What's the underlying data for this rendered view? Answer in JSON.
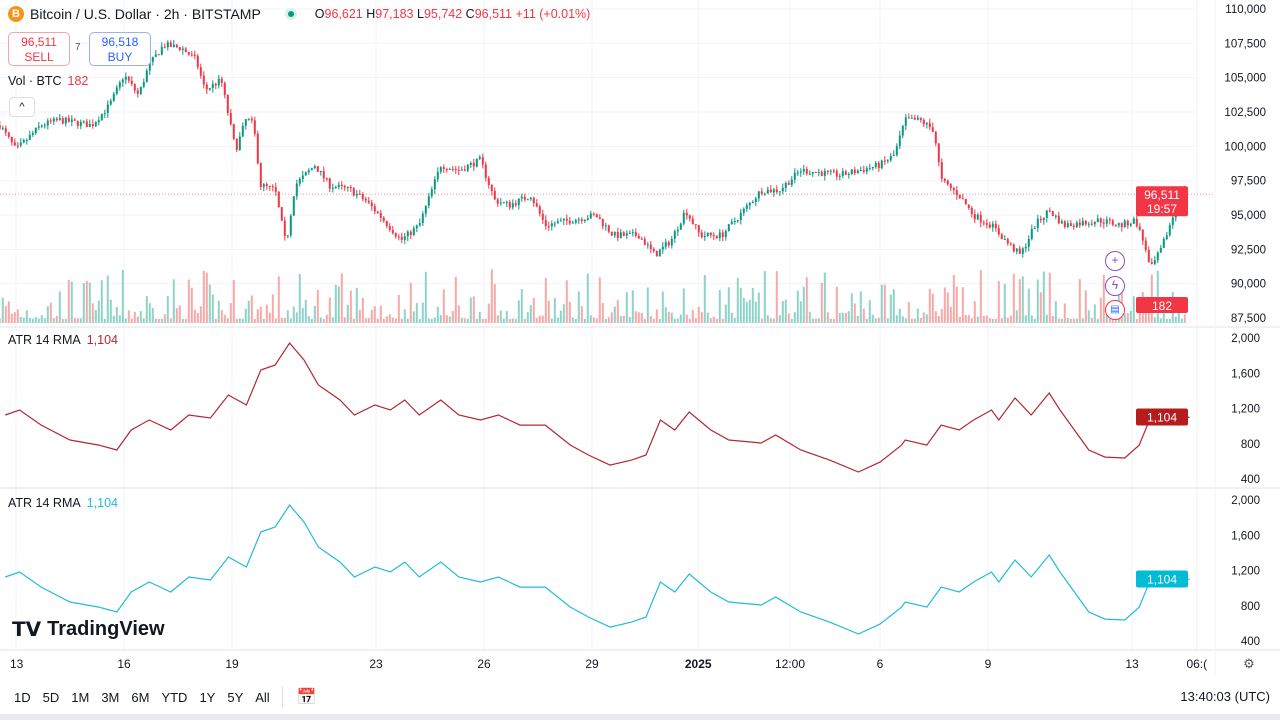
{
  "header": {
    "coin_icon": "B",
    "title": "Bitcoin / U.S. Dollar · 2h · BITSTAMP",
    "ohlc": {
      "o_label": "O",
      "o": "96,621",
      "h_label": "H",
      "h": "97,183",
      "l_label": "L",
      "l": "95,742",
      "c_label": "C",
      "c": "96,511",
      "change": "+11 (+0.01%)"
    }
  },
  "trade": {
    "sell_price": "96,511",
    "sell_label": "SELL",
    "spread": "7",
    "buy_price": "96,518",
    "buy_label": "BUY"
  },
  "volume_legend": {
    "label": "Vol · BTC",
    "value": "182"
  },
  "collapse_icon": "^",
  "indicators": [
    {
      "label": "ATR 14 RMA",
      "value": "1,104",
      "color": "#b22833"
    },
    {
      "label": "ATR 14 RMA",
      "value": "1,104",
      "color": "#22bcd8"
    }
  ],
  "logo": "TradingView",
  "tags": {
    "price": "96,511",
    "countdown": "19:57",
    "volume": "182",
    "atr1": "1,104",
    "atr2": "1,104"
  },
  "colors": {
    "up": "#089981",
    "down": "#f23645",
    "atr1": "#b22833",
    "atr2": "#22bcd8",
    "up_vol": "#8fd3c8",
    "down_vol": "#f7a9a7"
  },
  "bottom": {
    "ranges": [
      "1D",
      "5D",
      "1M",
      "3M",
      "6M",
      "YTD",
      "1Y",
      "5Y",
      "All"
    ],
    "clock": "13:40:03 (UTC)"
  },
  "chart_data": [
    {
      "type": "candlestick",
      "title": "Bitcoin / U.S. Dollar · 2h · BITSTAMP",
      "ylim": [
        87500,
        110000
      ],
      "yticks": [
        "110,000",
        "107,500",
        "105,000",
        "102,500",
        "100,000",
        "97,500",
        "95,000",
        "92,500",
        "90,000",
        "87,500"
      ],
      "xticks": [
        {
          "day": 0,
          "label": "13"
        },
        {
          "day": 3,
          "label": "16"
        },
        {
          "day": 6,
          "label": "19"
        },
        {
          "day": 10,
          "label": "23"
        },
        {
          "day": 13,
          "label": "26"
        },
        {
          "day": 16,
          "label": "29"
        },
        {
          "day": 18.95,
          "label": "2025"
        },
        {
          "day": 21.5,
          "label": "12:00"
        },
        {
          "day": 24,
          "label": "6"
        },
        {
          "day": 27,
          "label": "9"
        },
        {
          "day": 31,
          "label": "13"
        },
        {
          "day": 32.8,
          "label": "06:("
        }
      ],
      "x_unit": "days since Dec 13",
      "close_keypoints": [
        [
          -0.45,
          101540
        ],
        [
          0,
          99720
        ],
        [
          0.7,
          101540
        ],
        [
          1.2,
          101910
        ],
        [
          2.1,
          101540
        ],
        [
          2.6,
          103000
        ],
        [
          3,
          105190
        ],
        [
          3.4,
          103730
        ],
        [
          3.7,
          105920
        ],
        [
          4.1,
          107380
        ],
        [
          4.6,
          107160
        ],
        [
          5,
          106280
        ],
        [
          5.25,
          104100
        ],
        [
          5.7,
          104820
        ],
        [
          6.1,
          99720
        ],
        [
          6.4,
          102050
        ],
        [
          6.6,
          101540
        ],
        [
          6.8,
          97170
        ],
        [
          7.2,
          96800
        ],
        [
          7.5,
          92800
        ],
        [
          7.75,
          97170
        ],
        [
          8.3,
          98630
        ],
        [
          8.7,
          97170
        ],
        [
          9.3,
          96800
        ],
        [
          9.7,
          96080
        ],
        [
          10.1,
          94980
        ],
        [
          10.7,
          93160
        ],
        [
          11.2,
          94250
        ],
        [
          11.5,
          96440
        ],
        [
          11.8,
          98630
        ],
        [
          12.3,
          98260
        ],
        [
          12.9,
          98990
        ],
        [
          13.3,
          96080
        ],
        [
          13.7,
          95710
        ],
        [
          14.3,
          96440
        ],
        [
          14.7,
          94250
        ],
        [
          15.4,
          94620
        ],
        [
          16.1,
          94980
        ],
        [
          16.6,
          93520
        ],
        [
          17.3,
          93520
        ],
        [
          17.75,
          92070
        ],
        [
          18.2,
          93160
        ],
        [
          18.6,
          95350
        ],
        [
          19,
          93520
        ],
        [
          19.6,
          93520
        ],
        [
          20.1,
          94980
        ],
        [
          20.7,
          96800
        ],
        [
          21.2,
          96800
        ],
        [
          21.8,
          98260
        ],
        [
          22.9,
          97900
        ],
        [
          24,
          98630
        ],
        [
          24.4,
          99360
        ],
        [
          24.7,
          101910
        ],
        [
          25.1,
          101910
        ],
        [
          25.5,
          101180
        ],
        [
          25.7,
          97530
        ],
        [
          26.2,
          96440
        ],
        [
          26.6,
          94980
        ],
        [
          27.1,
          94250
        ],
        [
          27.6,
          92800
        ],
        [
          27.9,
          92070
        ],
        [
          28.3,
          94250
        ],
        [
          28.7,
          95350
        ],
        [
          29.1,
          94250
        ],
        [
          30.1,
          94620
        ],
        [
          30.7,
          94250
        ],
        [
          31.1,
          94620
        ],
        [
          31.4,
          92430
        ],
        [
          31.5,
          90970
        ],
        [
          31.8,
          92430
        ],
        [
          32.1,
          94620
        ],
        [
          32.4,
          96800
        ],
        [
          32.5,
          96511
        ]
      ],
      "last_price": 96511,
      "last_volume": 182
    },
    {
      "type": "line",
      "title": "ATR 14 RMA",
      "ylim": [
        400,
        2000
      ],
      "yticks": [
        "2,000",
        "1,600",
        "1,200",
        "800",
        "400"
      ],
      "points": [
        [
          -0.3,
          1126
        ],
        [
          0.1,
          1183
        ],
        [
          0.7,
          1012
        ],
        [
          1.5,
          842
        ],
        [
          2.3,
          785
        ],
        [
          2.8,
          729
        ],
        [
          3.2,
          956
        ],
        [
          3.7,
          1069
        ],
        [
          4.3,
          956
        ],
        [
          4.8,
          1126
        ],
        [
          5.4,
          1092
        ],
        [
          5.9,
          1353
        ],
        [
          6.4,
          1240
        ],
        [
          6.8,
          1637
        ],
        [
          7.2,
          1694
        ],
        [
          7.6,
          1943
        ],
        [
          8,
          1750
        ],
        [
          8.4,
          1467
        ],
        [
          9,
          1296
        ],
        [
          9.4,
          1126
        ],
        [
          9.97,
          1240
        ],
        [
          10.4,
          1183
        ],
        [
          10.8,
          1296
        ],
        [
          11.2,
          1126
        ],
        [
          11.8,
          1296
        ],
        [
          12.3,
          1126
        ],
        [
          12.9,
          1069
        ],
        [
          13.4,
          1126
        ],
        [
          14,
          1012
        ],
        [
          14.7,
          1012
        ],
        [
          15.4,
          785
        ],
        [
          15.9,
          672
        ],
        [
          16.5,
          558
        ],
        [
          17.1,
          615
        ],
        [
          17.5,
          672
        ],
        [
          17.9,
          1069
        ],
        [
          18.3,
          956
        ],
        [
          18.7,
          1160
        ],
        [
          19.3,
          956
        ],
        [
          19.8,
          842
        ],
        [
          20.7,
          808
        ],
        [
          21.1,
          899
        ],
        [
          21.8,
          729
        ],
        [
          22.6,
          615
        ],
        [
          23.4,
          479
        ],
        [
          24,
          592
        ],
        [
          24.6,
          785
        ],
        [
          24.7,
          842
        ],
        [
          25.3,
          785
        ],
        [
          25.7,
          1012
        ],
        [
          26.2,
          956
        ],
        [
          26.6,
          1069
        ],
        [
          27.1,
          1183
        ],
        [
          27.3,
          1069
        ],
        [
          27.75,
          1319
        ],
        [
          28.2,
          1126
        ],
        [
          28.7,
          1376
        ],
        [
          29,
          1183
        ],
        [
          29.4,
          956
        ],
        [
          29.8,
          729
        ],
        [
          30.25,
          649
        ],
        [
          30.8,
          638
        ],
        [
          31.2,
          785
        ],
        [
          31.6,
          1183
        ],
        [
          31.9,
          1160
        ],
        [
          32.3,
          1012
        ],
        [
          32.5,
          1092
        ],
        [
          32.6,
          1104
        ]
      ],
      "last_value": 1104
    }
  ]
}
